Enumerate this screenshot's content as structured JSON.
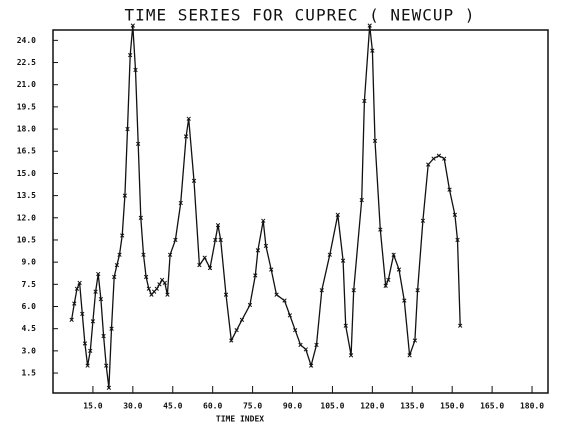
{
  "chart_data": {
    "type": "line",
    "title": "TIME SERIES FOR CUPREC ( NEWCUP )",
    "x_label": "TIME INDEX",
    "x": [
      7,
      8,
      9,
      10,
      11,
      12,
      13,
      14,
      15,
      16,
      17,
      18,
      19,
      20,
      21,
      22,
      23,
      24,
      25,
      26,
      27,
      28,
      29,
      30,
      31,
      32,
      33,
      34,
      35,
      36,
      37,
      38,
      39,
      40,
      41,
      42,
      43,
      44,
      46,
      48,
      50,
      51,
      53,
      55,
      57,
      59,
      61,
      62,
      63,
      65,
      67,
      69,
      71,
      74,
      76,
      77,
      79,
      80,
      82,
      84,
      87,
      89,
      91,
      93,
      95,
      97,
      99,
      101,
      104,
      107,
      109,
      110,
      112,
      113,
      116,
      117,
      119,
      120,
      121,
      123,
      125,
      126,
      128,
      130,
      132,
      134,
      136,
      137,
      139,
      141,
      143,
      145,
      147,
      149,
      151,
      152,
      153
    ],
    "values": [
      5.1,
      6.2,
      7.2,
      7.6,
      5.5,
      3.5,
      2.0,
      3.0,
      5.0,
      7.0,
      8.2,
      6.5,
      4.0,
      2.0,
      0.5,
      4.5,
      8.0,
      8.8,
      9.5,
      10.8,
      13.5,
      18.0,
      23.0,
      25.0,
      22.0,
      17.0,
      12.0,
      9.5,
      8.0,
      7.2,
      6.8,
      7.0,
      7.2,
      7.5,
      7.8,
      7.6,
      6.8,
      9.5,
      10.5,
      13.0,
      17.5,
      18.7,
      14.5,
      8.8,
      9.3,
      8.6,
      10.5,
      11.5,
      10.5,
      6.8,
      3.7,
      4.4,
      5.1,
      6.1,
      8.1,
      9.8,
      11.8,
      10.1,
      8.5,
      6.8,
      6.4,
      5.4,
      4.4,
      3.4,
      3.1,
      2.0,
      3.4,
      7.1,
      9.5,
      12.2,
      9.1,
      4.7,
      2.7,
      7.1,
      13.2,
      19.9,
      25.0,
      23.3,
      17.2,
      11.2,
      7.4,
      7.8,
      9.5,
      8.5,
      6.4,
      2.7,
      3.7,
      7.1,
      11.8,
      15.6,
      16.0,
      16.2,
      16.0,
      13.9,
      12.2,
      10.5,
      4.7
    ],
    "color": "#111111",
    "xlim": [
      0,
      186
    ],
    "ylim": [
      0.15,
      24.7
    ],
    "xticks": [
      {
        "value": 15,
        "label": "15.0"
      },
      {
        "value": 30,
        "label": "30.0"
      },
      {
        "value": 45,
        "label": "45.0"
      },
      {
        "value": 60,
        "label": "60.0"
      },
      {
        "value": 75,
        "label": "75.0"
      },
      {
        "value": 90,
        "label": "90.0"
      },
      {
        "value": 105,
        "label": "105.0"
      },
      {
        "value": 120,
        "label": "120.0"
      },
      {
        "value": 135,
        "label": "135.0"
      },
      {
        "value": 150,
        "label": "150.0"
      },
      {
        "value": 165,
        "label": "165.0"
      },
      {
        "value": 180,
        "label": "180.0"
      }
    ],
    "yticks": [
      1.5,
      {
        "value": 3,
        "label": "3.0"
      },
      4.5,
      {
        "value": 6,
        "label": "6.0"
      },
      7.5,
      {
        "value": 9,
        "label": "9.0"
      },
      10.5,
      {
        "value": 12,
        "label": "12.0"
      },
      13.5,
      {
        "value": 15,
        "label": "15.0"
      },
      16.5,
      {
        "value": 18,
        "label": "18.0"
      },
      19.5,
      {
        "value": 21,
        "label": "21.0"
      },
      22.5,
      {
        "value": 24,
        "label": "24.0"
      }
    ],
    "grid": false
  }
}
